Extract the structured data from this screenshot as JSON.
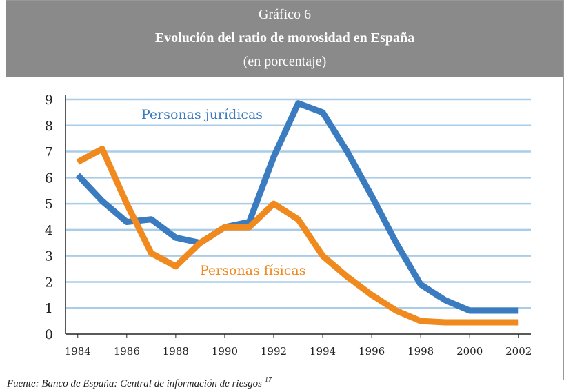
{
  "chart_data": {
    "type": "line",
    "title": "Gráfico 6",
    "subtitle": "Evolución del ratio de morosidad en España",
    "unit_note": "(en porcentaje)",
    "source": "Fuente: Banco de España: Central de información de riesgos",
    "source_ref": "17",
    "x": [
      1984,
      1985,
      1986,
      1987,
      1988,
      1989,
      1990,
      1991,
      1992,
      1993,
      1994,
      1995,
      1996,
      1997,
      1998,
      1999,
      2000,
      2001,
      2002
    ],
    "series": [
      {
        "name": "Personas jurídicas",
        "color": "#3b7cc0",
        "values": [
          6.1,
          5.1,
          4.3,
          4.4,
          3.7,
          3.5,
          4.1,
          4.3,
          6.8,
          8.85,
          8.5,
          7.0,
          5.3,
          3.5,
          1.9,
          1.3,
          0.9,
          0.9,
          0.9
        ]
      },
      {
        "name": "Personas físicas",
        "color": "#f08a1e",
        "values": [
          6.6,
          7.1,
          5.0,
          3.1,
          2.6,
          3.5,
          4.1,
          4.1,
          5.0,
          4.4,
          3.0,
          2.2,
          1.5,
          0.9,
          0.5,
          0.45,
          0.45,
          0.45,
          0.45
        ]
      }
    ],
    "xlim": [
      1983.5,
      2002.5
    ],
    "xticks": [
      1984,
      1986,
      1988,
      1990,
      1992,
      1994,
      1996,
      1998,
      2000,
      2002
    ],
    "ylim": [
      0,
      9
    ],
    "yticks": [
      0,
      1,
      2,
      3,
      4,
      5,
      6,
      7,
      8,
      9
    ],
    "grid": true,
    "grid_color": "#a9cde8"
  }
}
